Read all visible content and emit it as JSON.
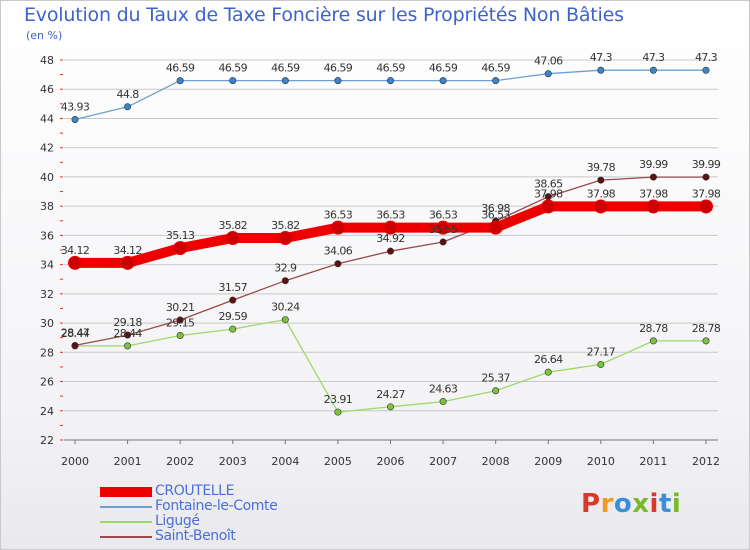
{
  "title": "Evolution du Taux de Taxe Foncière sur les Propriétés Non Bâties",
  "subtitle": "(en %)",
  "logo": "Proxiti",
  "logo_colors": [
    "#d83a2a",
    "#f29a1f",
    "#3a8fd8",
    "#7ab828",
    "#d83a2a",
    "#3a8fd8",
    "#7ab828"
  ],
  "colors": {
    "title": "#3f63c8",
    "grid": "#c8c8c8",
    "axis_text": "#333333"
  },
  "chart_data": {
    "type": "line",
    "title": "Evolution du Taux de Taxe Foncière sur les Propriétés Non Bâties",
    "ylabel": "(en %)",
    "xlabel": "",
    "ylim": [
      22,
      48
    ],
    "yticks": [
      22,
      24,
      26,
      28,
      30,
      32,
      34,
      36,
      38,
      40,
      42,
      44,
      46,
      48
    ],
    "categories": [
      "2000",
      "2001",
      "2002",
      "2003",
      "2004",
      "2005",
      "2006",
      "2007",
      "2008",
      "2009",
      "2010",
      "2011",
      "2012"
    ],
    "grid": true,
    "legend_position": "bottom-left",
    "series": [
      {
        "name": "CROUTELLE",
        "color": "#ee0000",
        "marker": "#cc0000",
        "emphasis": true,
        "values": [
          34.12,
          34.12,
          35.13,
          35.82,
          35.82,
          36.53,
          36.53,
          36.53,
          36.53,
          37.98,
          37.98,
          37.98,
          37.98
        ],
        "labels": [
          "34.12",
          "34.12",
          "35.13",
          "35.82",
          "35.82",
          "36.53",
          "36.53",
          "36.53",
          "36.53",
          "37.98",
          "37.98",
          "37.98",
          "37.98"
        ]
      },
      {
        "name": "Fontaine-le-Comte",
        "color": "#6aa0d6",
        "marker": "#3a86cc",
        "emphasis": false,
        "values": [
          43.93,
          44.8,
          46.59,
          46.59,
          46.59,
          46.59,
          46.59,
          46.59,
          46.59,
          47.06,
          47.3,
          47.3,
          47.3
        ],
        "labels": [
          "43.93",
          "44.8",
          "46.59",
          "46.59",
          "46.59",
          "46.59",
          "46.59",
          "46.59",
          "46.59",
          "47.06",
          "47.3",
          "47.3",
          "47.3"
        ]
      },
      {
        "name": "Ligugé",
        "color": "#9fd86a",
        "marker": "#7cc23c",
        "emphasis": false,
        "values": [
          28.44,
          28.44,
          29.15,
          29.59,
          30.24,
          23.91,
          24.27,
          24.63,
          25.37,
          26.64,
          27.17,
          28.78,
          28.78
        ],
        "labels": [
          "28.44",
          "28.44",
          "29.15",
          "29.59",
          "30.24",
          "23.91",
          "24.27",
          "24.63",
          "25.37",
          "26.64",
          "27.17",
          "28.78",
          "28.78"
        ]
      },
      {
        "name": "Saint-Benoît",
        "color": "#9a4a4a",
        "marker": "#5a1212",
        "emphasis": false,
        "values": [
          28.47,
          29.18,
          30.21,
          31.57,
          32.9,
          34.06,
          34.92,
          35.55,
          36.98,
          38.65,
          39.78,
          39.99,
          39.99
        ],
        "labels": [
          "28.47",
          "29.18",
          "30.21",
          "31.57",
          "32.9",
          "34.06",
          "34.92",
          "35.55",
          "36.98",
          "38.65",
          "39.78",
          "39.99",
          "39.99"
        ]
      }
    ]
  }
}
